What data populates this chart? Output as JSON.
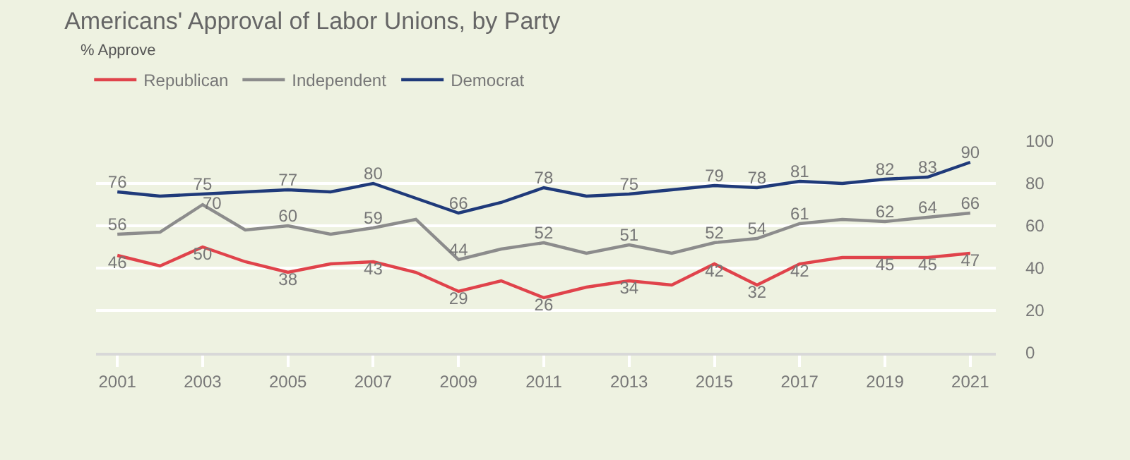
{
  "chart_data": {
    "type": "line",
    "title": "Americans' Approval of Labor Unions, by Party",
    "subtitle": "% Approve",
    "x": [
      2001,
      2002,
      2003,
      2004,
      2005,
      2006,
      2007,
      2008,
      2009,
      2010,
      2011,
      2012,
      2013,
      2014,
      2015,
      2016,
      2017,
      2018,
      2019,
      2020,
      2021
    ],
    "xlim": [
      2000.5,
      2021.6
    ],
    "xticks": [
      2001,
      2003,
      2005,
      2007,
      2009,
      2011,
      2013,
      2015,
      2017,
      2019,
      2021
    ],
    "ylim": [
      0,
      100
    ],
    "yticks": [
      0,
      20,
      40,
      60,
      80,
      100
    ],
    "grid": "y",
    "legend": "top left",
    "marker": "none",
    "line_style": "solid",
    "series": [
      {
        "name": "Republican",
        "color": "#e0434b",
        "values": [
          46,
          41,
          50,
          43,
          38,
          42,
          43,
          38,
          29,
          34,
          26,
          31,
          34,
          32,
          42,
          32,
          42,
          45,
          45,
          45,
          47
        ],
        "value_labels": [
          "46",
          null,
          "50",
          null,
          "38",
          null,
          "43",
          null,
          "29",
          null,
          "26",
          null,
          "34",
          null,
          "42",
          "32",
          "42",
          null,
          "45",
          "45",
          "47"
        ]
      },
      {
        "name": "Independent",
        "color": "#8c8c8c",
        "values": [
          56,
          57,
          70,
          58,
          60,
          56,
          59,
          63,
          44,
          49,
          52,
          47,
          51,
          47,
          52,
          54,
          61,
          63,
          62,
          64,
          66
        ],
        "value_labels": [
          "56",
          null,
          "70",
          null,
          "60",
          null,
          "59",
          null,
          "44",
          null,
          "52",
          null,
          "51",
          null,
          "52",
          "54",
          "61",
          null,
          "62",
          "64",
          "66"
        ]
      },
      {
        "name": "Democrat",
        "color": "#1f3a7a",
        "values": [
          76,
          74,
          75,
          76,
          77,
          76,
          80,
          73,
          66,
          71,
          78,
          74,
          75,
          77,
          79,
          78,
          81,
          80,
          82,
          83,
          90
        ],
        "value_labels": [
          "76",
          null,
          "75",
          null,
          "77",
          null,
          "80",
          null,
          "66",
          null,
          "78",
          null,
          "75",
          null,
          "79",
          "78",
          "81",
          null,
          "82",
          "83",
          "90"
        ]
      }
    ]
  }
}
